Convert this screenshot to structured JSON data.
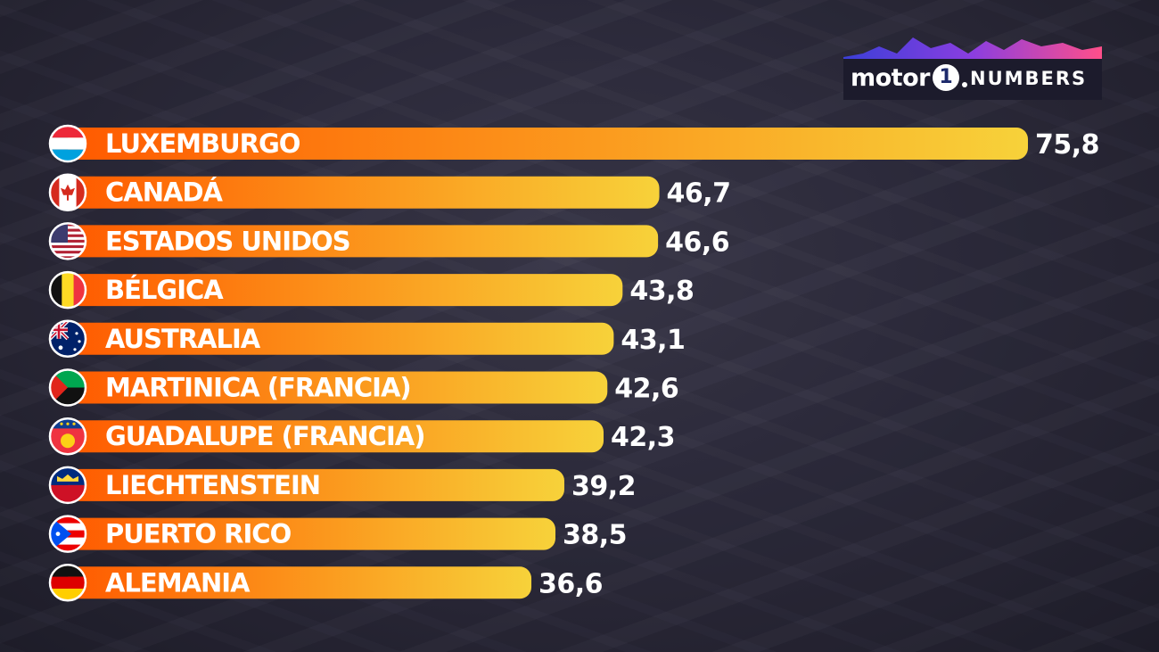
{
  "logo": {
    "word": "motor",
    "one": "1",
    "numbers": "NUMBERS"
  },
  "chart_data": {
    "type": "bar",
    "orientation": "horizontal",
    "categories": [
      "LUXEMBURGO",
      "CANADÁ",
      "ESTADOS UNIDOS",
      "BÉLGICA",
      "AUSTRALIA",
      "MARTINICA (FRANCIA)",
      "GUADALUPE (FRANCIA)",
      "LIECHTENSTEIN",
      "PUERTO RICO",
      "ALEMANIA"
    ],
    "values": [
      75.8,
      46.7,
      46.6,
      43.8,
      43.1,
      42.6,
      42.3,
      39.2,
      38.5,
      36.6
    ],
    "value_labels": [
      "75,8",
      "46,7",
      "46,6",
      "43,8",
      "43,1",
      "42,6",
      "42,3",
      "39,2",
      "38,5",
      "36,6"
    ],
    "flags": [
      "luxembourg-flag",
      "canada-flag",
      "usa-flag",
      "belgium-flag",
      "australia-flag",
      "martinique-flag",
      "guadeloupe-flag",
      "liechtenstein-flag",
      "puerto-rico-flag",
      "germany-flag"
    ],
    "title": "",
    "xlabel": "",
    "ylabel": "",
    "grid": false,
    "bar_gradient": [
      "#ff5a00",
      "#f7d23a"
    ]
  }
}
